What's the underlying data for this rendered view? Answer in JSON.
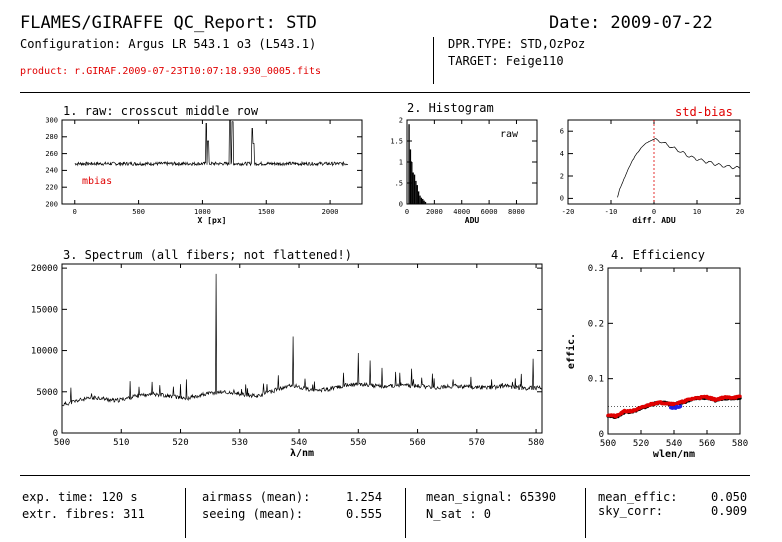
{
  "header": {
    "title": "FLAMES/GIRAFFE QC_Report: STD",
    "date_text": "Date: 2009-07-22",
    "configuration": "Configuration: Argus LR 543.1 o3 (L543.1)",
    "product": "product: r.GIRAF.2009-07-23T10:07:18.930_0005.fits",
    "dpr_type": "DPR.TYPE: STD,OzPoz",
    "target": "TARGET: Feige110"
  },
  "footer": {
    "exp_time": "exp. time: 120 s",
    "extr_fibres": "extr. fibres: 311",
    "airmass_label": "airmass (mean):",
    "airmass_value": "1.254",
    "seeing_label": "seeing (mean):",
    "seeing_value": "0.555",
    "mean_signal": "mean_signal: 65390",
    "n_sat": "N_sat : 0",
    "mean_effic_label": "mean_effic:",
    "mean_effic_value": "0.050",
    "sky_corr_label": "sky_corr:",
    "sky_corr_value": "0.909"
  },
  "colors": {
    "red": "#e00000",
    "blue": "#2020e0",
    "black": "#000000"
  },
  "chart_data": [
    {
      "id": "raw",
      "type": "line",
      "title": "1. raw: crosscut middle row",
      "xlabel": "X [px]",
      "ylabel": "",
      "xlim": [
        -100,
        2250
      ],
      "ylim": [
        200,
        300
      ],
      "xticks": [
        0,
        500,
        1000,
        1500,
        2000
      ],
      "yticks": [
        200,
        220,
        240,
        260,
        280,
        300
      ],
      "annotation": "mbias",
      "series": [
        {
          "baseline": 248,
          "x_range": [
            0,
            2140
          ],
          "peaks": [
            [
              1030,
              296
            ],
            [
              1045,
              275
            ],
            [
              1215,
              300
            ],
            [
              1235,
              298
            ],
            [
              1390,
              290
            ],
            [
              1400,
              272
            ]
          ]
        }
      ]
    },
    {
      "id": "hist",
      "type": "bar",
      "title": "2. Histogram",
      "xlabel": "ADU",
      "annotation": "raw",
      "xlim": [
        0,
        9500
      ],
      "ylim": [
        0,
        2
      ],
      "xticks": [
        0,
        2000,
        4000,
        6000,
        8000
      ],
      "yticks": [
        0,
        0.5,
        1,
        1.5,
        2
      ],
      "ytick_labels": [
        "0",
        ".5",
        "1",
        "1.5",
        "2"
      ],
      "x": [
        150,
        250,
        350,
        450,
        550,
        650,
        750,
        850,
        950,
        1050,
        1150,
        1250,
        1350
      ],
      "values": [
        1.9,
        1.3,
        1.0,
        0.75,
        0.7,
        0.55,
        0.45,
        0.3,
        0.2,
        0.15,
        0.12,
        0.08,
        0.05
      ]
    },
    {
      "id": "stdbias",
      "type": "line",
      "title": "",
      "annotation": "std-bias",
      "xlabel": "diff. ADU",
      "xlim": [
        -20,
        20
      ],
      "ylim": [
        -0.5,
        7
      ],
      "xticks": [
        -20,
        -10,
        0,
        10,
        20
      ],
      "yticks": [
        0,
        2,
        4,
        6
      ],
      "reference_x": 0,
      "series": [
        {
          "x": [
            -8.5,
            -8,
            -7,
            -6,
            -5,
            -4,
            -3,
            -2,
            -1,
            0,
            2,
            4,
            6,
            8,
            10,
            12,
            14,
            16,
            18,
            20
          ],
          "y": [
            0.1,
            0.8,
            1.7,
            2.6,
            3.4,
            4.0,
            4.5,
            4.9,
            5.1,
            5.3,
            5.0,
            4.6,
            4.2,
            3.8,
            3.5,
            3.3,
            3.1,
            2.9,
            2.8,
            2.7
          ]
        }
      ]
    },
    {
      "id": "spectrum",
      "type": "line",
      "title": "3. Spectrum (all fibers; not flattened!)",
      "xlabel": "λ/nm",
      "xlim": [
        500,
        581
      ],
      "ylim": [
        0,
        20500
      ],
      "xticks": [
        500,
        510,
        520,
        530,
        540,
        550,
        560,
        570,
        580
      ],
      "yticks": [
        0,
        5000,
        10000,
        15000,
        20000
      ],
      "series": [
        {
          "continuum_x": [
            500,
            503,
            506,
            509,
            512,
            515,
            518,
            521,
            524,
            527,
            530,
            533,
            536,
            539,
            542,
            545,
            548,
            551,
            554,
            557,
            560,
            563,
            566,
            569,
            572,
            575,
            578,
            581
          ],
          "continuum_y": [
            3400,
            4000,
            4300,
            3900,
            4400,
            4800,
            4500,
            4200,
            4700,
            5000,
            4700,
            4500,
            5200,
            5800,
            5200,
            5300,
            5800,
            5900,
            5600,
            5800,
            5700,
            5500,
            5700,
            5600,
            5500,
            5700,
            5400,
            5500
          ],
          "peaks": [
            [
              501.5,
              5500
            ],
            [
              505,
              4800
            ],
            [
              511.5,
              6300
            ],
            [
              513,
              5600
            ],
            [
              516.5,
              5800
            ],
            [
              521,
              6500
            ],
            [
              526,
              19300
            ],
            [
              531,
              5900
            ],
            [
              534,
              6000
            ],
            [
              536.5,
              7000
            ],
            [
              539,
              11700
            ],
            [
              541,
              6600
            ],
            [
              547.5,
              7300
            ],
            [
              550,
              9700
            ],
            [
              552,
              8800
            ],
            [
              554,
              7900
            ],
            [
              557,
              7300
            ],
            [
              559,
              7800
            ],
            [
              562.5,
              7200
            ],
            [
              566,
              6500
            ],
            [
              569,
              6800
            ],
            [
              572.5,
              6500
            ],
            [
              576,
              6200
            ],
            [
              579.5,
              9000
            ]
          ]
        }
      ]
    },
    {
      "id": "efficiency",
      "type": "scatter",
      "title": "4. Efficiency",
      "xlabel": "wlen/nm",
      "ylabel": "effic.",
      "xlim": [
        500,
        580
      ],
      "ylim": [
        0,
        0.3
      ],
      "xticks": [
        500,
        520,
        540,
        560,
        580
      ],
      "yticks": [
        0,
        0.1,
        0.2,
        0.3
      ],
      "reference_y": 0.05,
      "series": [
        {
          "color": "#000000",
          "x": [
            500,
            505,
            510,
            515,
            520,
            525,
            530,
            535,
            540,
            545,
            550,
            555,
            560,
            565,
            570,
            575,
            580
          ],
          "y": [
            0.034,
            0.031,
            0.04,
            0.041,
            0.046,
            0.052,
            0.056,
            0.056,
            0.053,
            0.057,
            0.062,
            0.065,
            0.066,
            0.061,
            0.065,
            0.065,
            0.066
          ]
        },
        {
          "color": "#e00000",
          "x": [
            500,
            505,
            510,
            515,
            520,
            525,
            530,
            535,
            540,
            545,
            550,
            555,
            560,
            565,
            570,
            575,
            580
          ],
          "y": [
            0.035,
            0.032,
            0.041,
            0.042,
            0.047,
            0.053,
            0.057,
            0.056,
            0.054,
            0.058,
            0.063,
            0.066,
            0.067,
            0.062,
            0.066,
            0.066,
            0.067
          ]
        },
        {
          "color": "#2020e0",
          "x": [
            538,
            540,
            542,
            544
          ],
          "y": [
            0.049,
            0.047,
            0.049,
            0.051
          ]
        }
      ]
    }
  ]
}
